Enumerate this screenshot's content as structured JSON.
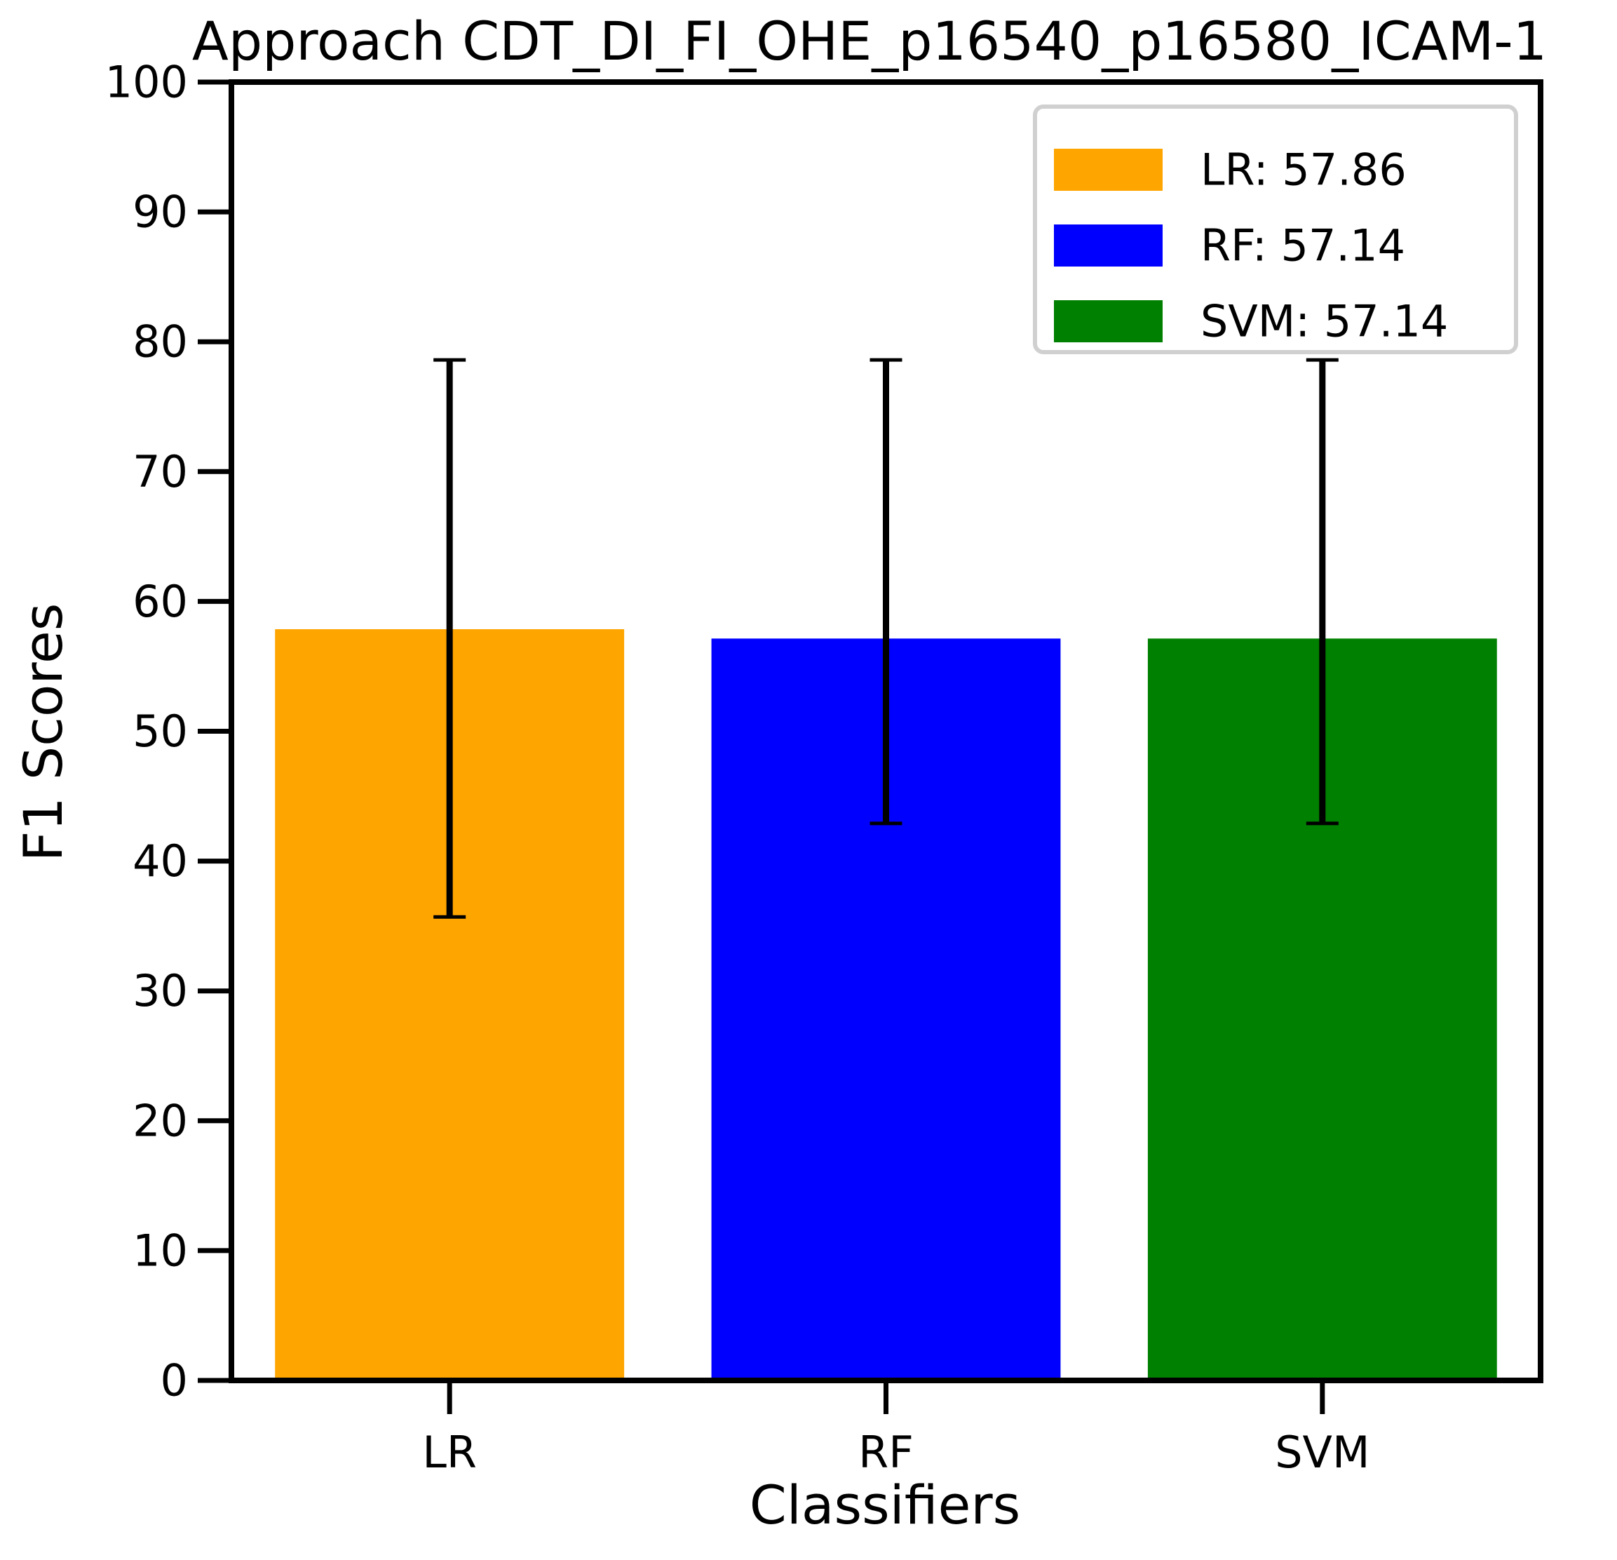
{
  "chart_data": {
    "type": "bar",
    "title": "Approach CDT_DI_FI_OHE_p16540_p16580_ICAM-1",
    "xlabel": "Classifiers",
    "ylabel": "F1 Scores",
    "categories": [
      "LR",
      "RF",
      "SVM"
    ],
    "values": [
      57.86,
      57.14,
      57.14
    ],
    "error_bars": [
      {
        "lower": 35.7,
        "upper": 78.6
      },
      {
        "lower": 42.9,
        "upper": 78.6
      },
      {
        "lower": 42.9,
        "upper": 78.6
      }
    ],
    "colors": [
      "#ffa500",
      "#0000ff",
      "#008000"
    ],
    "error_bar_color": "#000000",
    "ylim": [
      0,
      100
    ],
    "yticks": [
      "0",
      "10",
      "20",
      "30",
      "40",
      "50",
      "60",
      "70",
      "80",
      "90",
      "100"
    ],
    "legend": {
      "position": "top-right",
      "entries": [
        "LR: 57.86",
        "RF: 57.14",
        "SVM: 57.14"
      ]
    },
    "grid": false
  }
}
